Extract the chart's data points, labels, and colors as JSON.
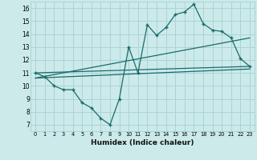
{
  "xlabel": "Humidex (Indice chaleur)",
  "bg_color": "#cceaea",
  "grid_color": "#aad4d4",
  "line_color": "#1a6b6b",
  "xlim": [
    -0.5,
    23.5
  ],
  "ylim": [
    6.5,
    16.5
  ],
  "xticks": [
    0,
    1,
    2,
    3,
    4,
    5,
    6,
    7,
    8,
    9,
    10,
    11,
    12,
    13,
    14,
    15,
    16,
    17,
    18,
    19,
    20,
    21,
    22,
    23
  ],
  "yticks": [
    7,
    8,
    9,
    10,
    11,
    12,
    13,
    14,
    15,
    16
  ],
  "series1": {
    "x": [
      0,
      1,
      2,
      3,
      4,
      5,
      6,
      7,
      8,
      9,
      10,
      11,
      12,
      13,
      14,
      15,
      16,
      17,
      18,
      19,
      20,
      21,
      22,
      23
    ],
    "y": [
      11.0,
      10.7,
      10.0,
      9.7,
      9.7,
      8.7,
      8.3,
      7.5,
      7.0,
      9.0,
      13.0,
      11.0,
      14.7,
      13.9,
      14.5,
      15.5,
      15.7,
      16.3,
      14.8,
      14.3,
      14.2,
      13.7,
      12.1,
      11.5
    ]
  },
  "series2": {
    "x": [
      0,
      23
    ],
    "y": [
      11.0,
      11.5
    ]
  },
  "series3": {
    "x": [
      0,
      23
    ],
    "y": [
      10.6,
      13.7
    ]
  },
  "series4": {
    "x": [
      0,
      23
    ],
    "y": [
      10.6,
      11.3
    ]
  }
}
